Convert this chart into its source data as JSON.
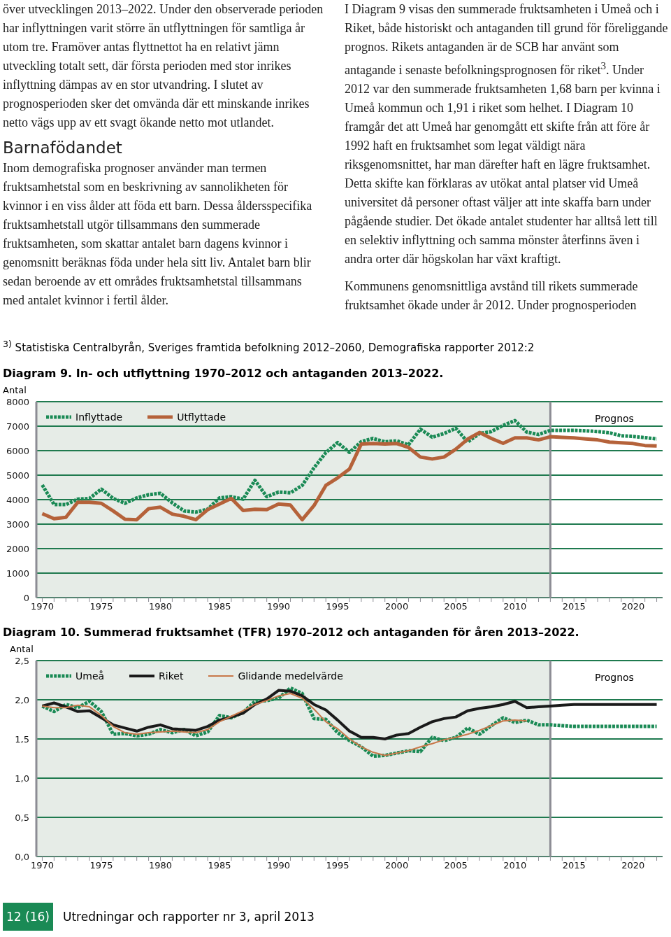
{
  "chart_data": [
    {
      "type": "line",
      "title": "Diagram 9. In- och utflyttning 1970–2012 och antaganden 2013–2022.",
      "ylabel": "Antal",
      "annotations": [
        "över utvecklingen 2013–2022. Under den observerade perioden har inflyttningen varit större än utflyttningen för samtliga år utom tre. Framöver antas flyttnettot ha en relativt jämn utveckling totalt sett, där första perioden med stor inrikes inflyttning dämpas av en stor utvandring. I slutet av prognosperioden sker det omvända där ett minskande inrikes netto vägs upp av ett svagt ökande netto mot utlandet.",
        "Barnafödandet",
        "Inom demografiska prognoser använder man termen fruktsamhetstal som en beskrivning av sannolikheten för kvinnor i en viss ålder att föda ett barn. Dessa åldersspecifika fruktsamhetstall utgör tillsammans den summerade fruktsamheten, som skattar antalet barn dagens kvinnor i genomsnitt beräknas föda under hela sitt liv. Antalet barn blir sedan beroende av ett områdes fruktsamhetstal tillsammans med antalet kvinnor i fertil ålder.",
        "I Diagram 9 visas den summerade fruktsamheten i Umeå och i Riket, både historiskt och antaganden till grund för föreliggande prognos. Rikets antaganden är de SCB har använt som antagande i senaste befolkningsprognosen för riket$^{3}$. Under 2012 var den summerade fruktsamheten 1,68 barn per kvinna i Umeå kommun och 1,91 i riket som helhet. I Diagram 10 framgår det att Umeå har genomgått ett skifte från att före år 1992 haft en fruktsamhet som legat väldigt nära riksgenomsnittet, har man därefter haft en lägre fruktsamhet. Detta skifte kan förklaras av utökat antal platser vid Umeå universitet då personer oftast väljer att inte skaffa barn under pågående studier. Det ökade antalet studenter har alltså lett till en selektiv inflyttning och samma mönster återfinns även i andra orter där högskolan har växt kraftigt.",
        "Kommunens genomsnittliga avstånd till rikets summerade fruktsamhet ökade under år 2012. Under prognosperioden",
        "$^{3)}$ Statistiska Centralbyrån, Sveriges framtida befolkning 2012–2060, Demografiska rapporter 2012:2",
        "Prognos"
      ],
      "x": [
        1970,
        1971,
        1972,
        1973,
        1974,
        1975,
        1976,
        1977,
        1978,
        1979,
        1980,
        1981,
        1982,
        1983,
        1984,
        1985,
        1986,
        1987,
        1988,
        1989,
        1990,
        1991,
        1992,
        1993,
        1994,
        1995,
        1996,
        1997,
        1998,
        1999,
        2000,
        2001,
        2002,
        2003,
        2004,
        2005,
        2006,
        2007,
        2008,
        2009,
        2010,
        2011,
        2012,
        2013,
        2014,
        2015,
        2016,
        2017,
        2018,
        2019,
        2020,
        2021,
        2022
      ],
      "series": [
        {
          "name": "Inflyttade",
          "color": "#1a8a55",
          "line_style": "dotted",
          "values": [
            4600,
            3800,
            3800,
            4020,
            4050,
            4430,
            4050,
            3850,
            4070,
            4200,
            4260,
            3870,
            3540,
            3490,
            3610,
            4070,
            4120,
            4020,
            4790,
            4120,
            4310,
            4280,
            4580,
            5300,
            5920,
            6330,
            5930,
            6370,
            6500,
            6360,
            6400,
            6240,
            6880,
            6550,
            6700,
            6910,
            6350,
            6700,
            6780,
            7030,
            7230,
            6760,
            6660,
            6830,
            6830,
            6830,
            6810,
            6780,
            6730,
            6610,
            6580,
            6530,
            6480
          ]
        },
        {
          "name": "Utflyttade",
          "color": "#b5623a",
          "line_style": "solid",
          "values": [
            3430,
            3220,
            3280,
            3890,
            3890,
            3850,
            3540,
            3200,
            3180,
            3630,
            3690,
            3410,
            3320,
            3180,
            3590,
            3820,
            4050,
            3560,
            3610,
            3590,
            3820,
            3780,
            3180,
            3760,
            4580,
            4890,
            5250,
            6270,
            6290,
            6270,
            6290,
            6130,
            5740,
            5660,
            5740,
            6060,
            6470,
            6740,
            6500,
            6300,
            6520,
            6520,
            6440,
            6570,
            6540,
            6520,
            6480,
            6440,
            6350,
            6320,
            6290,
            6210,
            6190
          ]
        }
      ],
      "xlim": [
        1969.5,
        2022.5
      ],
      "ylim": [
        0,
        8000
      ],
      "yticks": [
        0,
        1000,
        2000,
        3000,
        4000,
        5000,
        6000,
        7000,
        8000
      ],
      "xticks": [
        1970,
        {
          "value": 1971,
          "label": null
        },
        {
          "value": 1972,
          "label": null
        },
        {
          "value": 1973,
          "label": null
        },
        {
          "value": 1974,
          "label": null
        },
        1975,
        {
          "value": 1976,
          "label": null
        },
        {
          "value": 1977,
          "label": null
        },
        {
          "value": 1978,
          "label": null
        },
        {
          "value": 1979,
          "label": null
        },
        1980,
        {
          "value": 1981,
          "label": null
        },
        {
          "value": 1982,
          "label": null
        },
        {
          "value": 1983,
          "label": null
        },
        {
          "value": 1984,
          "label": null
        },
        1985,
        {
          "value": 1986,
          "label": null
        },
        {
          "value": 1987,
          "label": null
        },
        {
          "value": 1988,
          "label": null
        },
        {
          "value": 1989,
          "label": null
        },
        1990,
        {
          "value": 1991,
          "label": null
        },
        {
          "value": 1992,
          "label": null
        },
        {
          "value": 1993,
          "label": null
        },
        {
          "value": 1994,
          "label": null
        },
        1995,
        {
          "value": 1996,
          "label": null
        },
        {
          "value": 1997,
          "label": null
        },
        {
          "value": 1998,
          "label": null
        },
        {
          "value": 1999,
          "label": null
        },
        2000,
        {
          "value": 2001,
          "label": null
        },
        {
          "value": 2002,
          "label": null
        },
        {
          "value": 2003,
          "label": null
        },
        {
          "value": 2004,
          "label": null
        },
        2005,
        {
          "value": 2006,
          "label": null
        },
        {
          "value": 2007,
          "label": null
        },
        {
          "value": 2008,
          "label": null
        },
        {
          "value": 2009,
          "label": null
        },
        2010,
        {
          "value": 2011,
          "label": null
        },
        {
          "value": 2012,
          "label": null
        },
        {
          "value": 2013,
          "label": null
        },
        {
          "value": 2014,
          "label": null
        },
        2015,
        {
          "value": 2016,
          "label": null
        },
        {
          "value": 2017,
          "label": null
        },
        {
          "value": 2018,
          "label": null
        },
        {
          "value": 2019,
          "label": null
        },
        2020,
        {
          "value": 2021,
          "label": null
        },
        {
          "value": 2022,
          "label": null
        }
      ],
      "bands": [
        {
          "axis": "x",
          "from": 1969.5,
          "to": 2013,
          "color": "#e6ece7"
        }
      ],
      "ref_lines": [
        {
          "axis": "x",
          "value": 2013,
          "color": "#8c8c94"
        }
      ],
      "grid": "y",
      "legend": "top left"
    },
    {
      "type": "line",
      "title": "Diagram 10. Summerad fruktsamhet (TFR) 1970–2012 och antaganden för åren 2013–2022.",
      "ylabel": "Antal",
      "annotations": [
        "12 (16)",
        "Utredningar och rapporter nr 3, april 2013",
        "Prognos"
      ],
      "x": [
        1970,
        1971,
        1972,
        1973,
        1974,
        1975,
        1976,
        1977,
        1978,
        1979,
        1980,
        1981,
        1982,
        1983,
        1984,
        1985,
        1986,
        1987,
        1988,
        1989,
        1990,
        1991,
        1992,
        1993,
        1994,
        1995,
        1996,
        1997,
        1998,
        1999,
        2000,
        2001,
        2002,
        2003,
        2004,
        2005,
        2006,
        2007,
        2008,
        2009,
        2010,
        2011,
        2012,
        2013,
        2014,
        2015,
        2016,
        2017,
        2018,
        2019,
        2020,
        2021,
        2022
      ],
      "series": [
        {
          "name": "Umeå",
          "color": "#1a8a55",
          "line_style": "dotted",
          "values": [
            1.92,
            1.85,
            1.94,
            1.9,
            1.98,
            1.85,
            1.56,
            1.57,
            1.54,
            1.56,
            1.62,
            1.58,
            1.62,
            1.54,
            1.59,
            1.8,
            1.77,
            1.84,
            1.98,
            1.99,
            2.02,
            2.15,
            2.08,
            1.76,
            1.75,
            1.58,
            1.48,
            1.4,
            1.28,
            1.29,
            1.32,
            1.35,
            1.34,
            1.52,
            1.48,
            1.52,
            1.64,
            1.56,
            1.67,
            1.77,
            1.71,
            1.74,
            1.68,
            1.68,
            1.67,
            1.66,
            1.66,
            1.66,
            1.66,
            1.66,
            1.66,
            1.66,
            1.66
          ]
        },
        {
          "name": "Riket",
          "color": "#1a1a1a",
          "line_style": "solid",
          "values": [
            1.92,
            1.96,
            1.91,
            1.85,
            1.86,
            1.77,
            1.68,
            1.64,
            1.6,
            1.65,
            1.68,
            1.63,
            1.62,
            1.61,
            1.66,
            1.74,
            1.78,
            1.83,
            1.94,
            2.01,
            2.12,
            2.11,
            2.05,
            1.94,
            1.87,
            1.74,
            1.6,
            1.52,
            1.52,
            1.5,
            1.55,
            1.57,
            1.65,
            1.72,
            1.76,
            1.78,
            1.86,
            1.89,
            1.91,
            1.94,
            1.98,
            1.9,
            1.91,
            1.92,
            1.93,
            1.94,
            1.94,
            1.94,
            1.94,
            1.94,
            1.94,
            1.94,
            1.94
          ]
        },
        {
          "name": "Glidande medelvärde",
          "color": "#c8784a",
          "line_style": "solid",
          "values": [
            1.92,
            1.9,
            1.9,
            1.93,
            1.91,
            1.8,
            1.66,
            1.58,
            1.56,
            1.58,
            1.59,
            1.6,
            1.59,
            1.58,
            1.62,
            1.72,
            1.79,
            1.86,
            1.94,
            1.99,
            2.05,
            2.08,
            2.02,
            1.88,
            1.72,
            1.63,
            1.5,
            1.4,
            1.33,
            1.29,
            1.32,
            1.35,
            1.4,
            1.44,
            1.49,
            1.52,
            1.56,
            1.61,
            1.67,
            1.73,
            1.74,
            1.73,
            null,
            null,
            null,
            null,
            null,
            null,
            null,
            null,
            null,
            null,
            null
          ]
        }
      ],
      "xlim": [
        1969.5,
        2022.5
      ],
      "ylim": [
        0,
        2.5
      ],
      "yticks": [
        {
          "value": 0,
          "label": "0,0"
        },
        {
          "value": 0.5,
          "label": "0,5"
        },
        {
          "value": 1,
          "label": "1,0"
        },
        {
          "value": 1.5,
          "label": "1,5"
        },
        {
          "value": 2,
          "label": "2,0"
        },
        {
          "value": 2.5,
          "label": "2,5"
        }
      ],
      "xticks": [
        1970,
        {
          "value": 1971,
          "label": null
        },
        {
          "value": 1972,
          "label": null
        },
        {
          "value": 1973,
          "label": null
        },
        {
          "value": 1974,
          "label": null
        },
        1975,
        {
          "value": 1976,
          "label": null
        },
        {
          "value": 1977,
          "label": null
        },
        {
          "value": 1978,
          "label": null
        },
        {
          "value": 1979,
          "label": null
        },
        1980,
        {
          "value": 1981,
          "label": null
        },
        {
          "value": 1982,
          "label": null
        },
        {
          "value": 1983,
          "label": null
        },
        {
          "value": 1984,
          "label": null
        },
        1985,
        {
          "value": 1986,
          "label": null
        },
        {
          "value": 1987,
          "label": null
        },
        {
          "value": 1988,
          "label": null
        },
        {
          "value": 1989,
          "label": null
        },
        1990,
        {
          "value": 1991,
          "label": null
        },
        {
          "value": 1992,
          "label": null
        },
        {
          "value": 1993,
          "label": null
        },
        {
          "value": 1994,
          "label": null
        },
        1995,
        {
          "value": 1996,
          "label": null
        },
        {
          "value": 1997,
          "label": null
        },
        {
          "value": 1998,
          "label": null
        },
        {
          "value": 1999,
          "label": null
        },
        2000,
        {
          "value": 2001,
          "label": null
        },
        {
          "value": 2002,
          "label": null
        },
        {
          "value": 2003,
          "label": null
        },
        {
          "value": 2004,
          "label": null
        },
        2005,
        {
          "value": 2006,
          "label": null
        },
        {
          "value": 2007,
          "label": null
        },
        {
          "value": 2008,
          "label": null
        },
        {
          "value": 2009,
          "label": null
        },
        2010,
        {
          "value": 2011,
          "label": null
        },
        {
          "value": 2012,
          "label": null
        },
        {
          "value": 2013,
          "label": null
        },
        {
          "value": 2014,
          "label": null
        },
        2015,
        {
          "value": 2016,
          "label": null
        },
        {
          "value": 2017,
          "label": null
        },
        {
          "value": 2018,
          "label": null
        },
        {
          "value": 2019,
          "label": null
        },
        2020,
        {
          "value": 2021,
          "label": null
        },
        {
          "value": 2022,
          "label": null
        }
      ],
      "bands": [
        {
          "axis": "x",
          "from": 1969.5,
          "to": 2013,
          "color": "#e6ece7"
        }
      ],
      "ref_lines": [
        {
          "axis": "x",
          "value": 2013,
          "color": "#8c8c94"
        }
      ],
      "grid": "y",
      "legend": "top left"
    }
  ]
}
